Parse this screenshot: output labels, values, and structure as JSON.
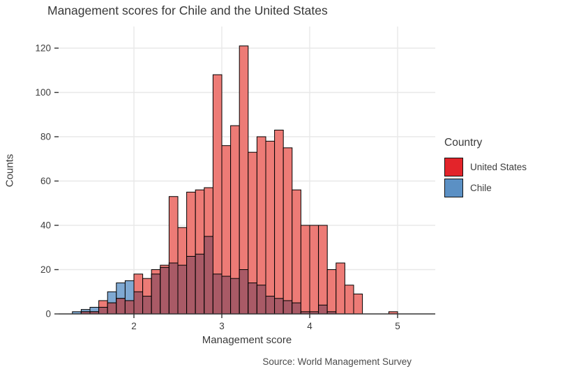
{
  "chart_data": {
    "type": "bar",
    "subtype": "overlaid-histogram",
    "title": "Management scores for Chile and the United States",
    "xlabel": "Management score",
    "ylabel": "Counts",
    "caption": "Source: World Management Survey",
    "x_ticks": [
      2,
      3,
      4,
      5
    ],
    "y_ticks": [
      0,
      20,
      40,
      60,
      80,
      100,
      120
    ],
    "xlim": [
      1.15,
      5.45
    ],
    "ylim": [
      0,
      130
    ],
    "bin_width": 0.1,
    "grid": "on",
    "legend": {
      "title": "Country",
      "position": "right",
      "items": [
        {
          "label": "United States",
          "color": "#e3242a"
        },
        {
          "label": "Chile",
          "color": "#5b90c4"
        }
      ]
    },
    "colors": {
      "us_fill": "#ed7b76",
      "chile_fill": "#7fa9d2",
      "overlap_fill": "#a95a66",
      "bar_outline": "#000000",
      "gridline": "#e8e8e8",
      "axis_line": "#333333",
      "tick_text": "#3d3d3d"
    },
    "series": [
      {
        "name": "United States",
        "color": "#e3242a"
      },
      {
        "name": "Chile",
        "color": "#5b90c4"
      }
    ],
    "bins": [
      {
        "x": 1.3,
        "us": 0,
        "chile": 1
      },
      {
        "x": 1.4,
        "us": 1,
        "chile": 2
      },
      {
        "x": 1.5,
        "us": 1,
        "chile": 3
      },
      {
        "x": 1.6,
        "us": 6,
        "chile": 3
      },
      {
        "x": 1.7,
        "us": 5,
        "chile": 10
      },
      {
        "x": 1.8,
        "us": 7,
        "chile": 14
      },
      {
        "x": 1.9,
        "us": 6,
        "chile": 15
      },
      {
        "x": 2.0,
        "us": 18,
        "chile": 10
      },
      {
        "x": 2.1,
        "us": 16,
        "chile": 8
      },
      {
        "x": 2.2,
        "us": 20,
        "chile": 18
      },
      {
        "x": 2.3,
        "us": 22,
        "chile": 21
      },
      {
        "x": 2.4,
        "us": 53,
        "chile": 23
      },
      {
        "x": 2.5,
        "us": 39,
        "chile": 22
      },
      {
        "x": 2.6,
        "us": 55,
        "chile": 26
      },
      {
        "x": 2.7,
        "us": 56,
        "chile": 27
      },
      {
        "x": 2.8,
        "us": 57,
        "chile": 35
      },
      {
        "x": 2.9,
        "us": 108,
        "chile": 18
      },
      {
        "x": 3.0,
        "us": 76,
        "chile": 17
      },
      {
        "x": 3.1,
        "us": 85,
        "chile": 16
      },
      {
        "x": 3.2,
        "us": 121,
        "chile": 20
      },
      {
        "x": 3.3,
        "us": 73,
        "chile": 14
      },
      {
        "x": 3.4,
        "us": 80,
        "chile": 13
      },
      {
        "x": 3.5,
        "us": 78,
        "chile": 8
      },
      {
        "x": 3.6,
        "us": 83,
        "chile": 7
      },
      {
        "x": 3.7,
        "us": 75,
        "chile": 6
      },
      {
        "x": 3.8,
        "us": 56,
        "chile": 5
      },
      {
        "x": 3.9,
        "us": 40,
        "chile": 1
      },
      {
        "x": 4.0,
        "us": 40,
        "chile": 1
      },
      {
        "x": 4.1,
        "us": 40,
        "chile": 4
      },
      {
        "x": 4.2,
        "us": 20,
        "chile": 1
      },
      {
        "x": 4.3,
        "us": 23,
        "chile": 0
      },
      {
        "x": 4.4,
        "us": 13,
        "chile": 0
      },
      {
        "x": 4.5,
        "us": 9,
        "chile": 0
      },
      {
        "x": 4.6,
        "us": 0,
        "chile": 0
      },
      {
        "x": 4.7,
        "us": 0,
        "chile": 0
      },
      {
        "x": 4.8,
        "us": 0,
        "chile": 0
      },
      {
        "x": 4.9,
        "us": 1,
        "chile": 0
      }
    ]
  }
}
